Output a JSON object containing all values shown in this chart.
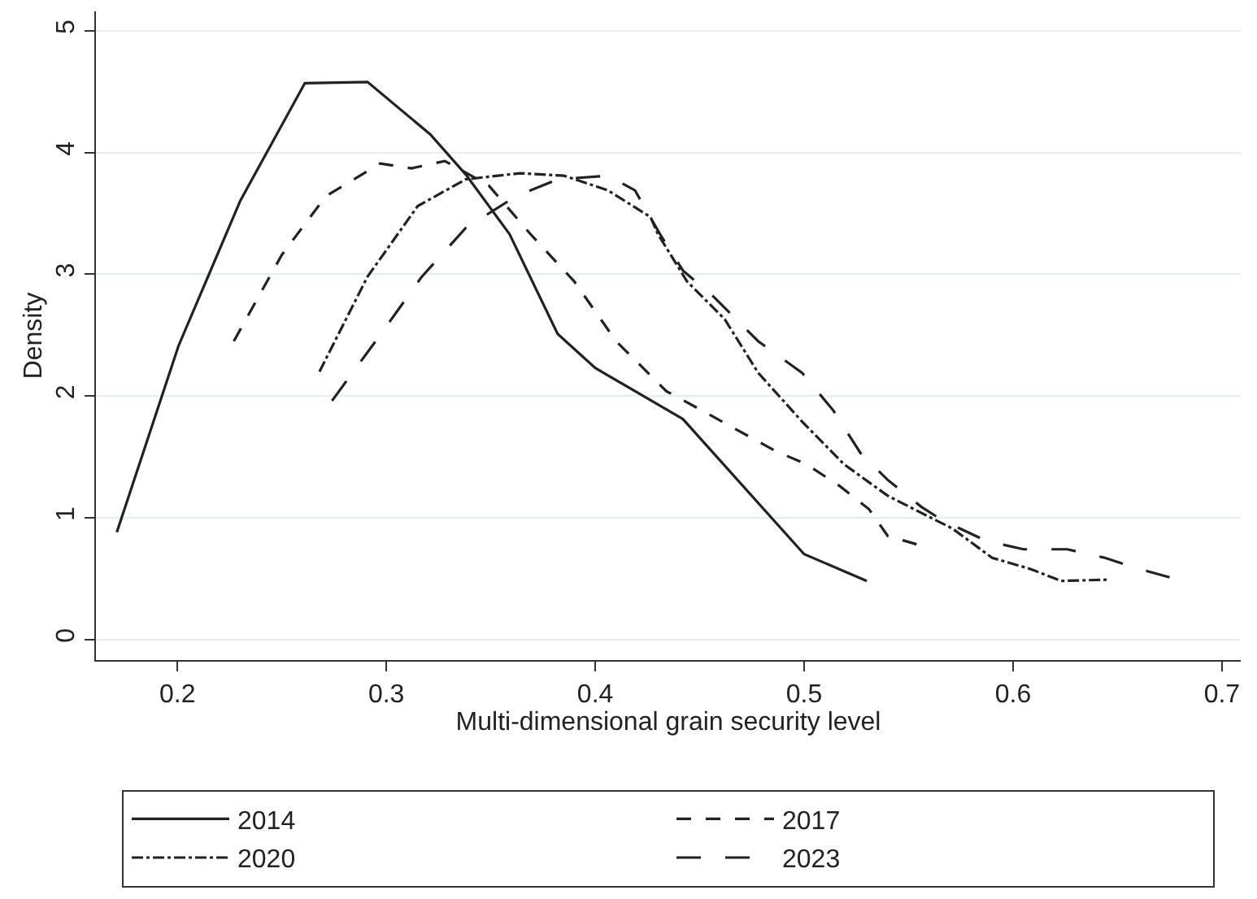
{
  "chart_data": {
    "type": "line",
    "xlabel": "Multi-dimensional grain security level",
    "ylabel": "Density",
    "xlim": [
      0.161,
      0.709
    ],
    "xticks": [
      0.2,
      0.3,
      0.4,
      0.5,
      0.6,
      0.7
    ],
    "ylim": [
      -0.17,
      5.16
    ],
    "yticks": [
      0,
      1,
      2,
      3,
      4,
      5
    ],
    "grid": "y",
    "legend": "bottom",
    "marker": "none",
    "series": [
      {
        "name": "2014",
        "color": "#222222",
        "line_style": "solid",
        "x": [
          0.171,
          0.2005,
          0.23,
          0.261,
          0.291,
          0.321,
          0.338,
          0.359,
          0.382,
          0.4,
          0.442,
          0.5,
          0.53
        ],
        "values": [
          0.88,
          2.41,
          3.6,
          4.57,
          4.58,
          4.15,
          3.82,
          3.33,
          2.51,
          2.23,
          1.81,
          0.7,
          0.48
        ]
      },
      {
        "name": "2017",
        "color": "#222222",
        "line_style": "dashed",
        "x": [
          0.227,
          0.25,
          0.271,
          0.297,
          0.312,
          0.328,
          0.349,
          0.369,
          0.39,
          0.41,
          0.434,
          0.449,
          0.486,
          0.501,
          0.517,
          0.531,
          0.54,
          0.556
        ],
        "values": [
          2.45,
          3.16,
          3.64,
          3.91,
          3.87,
          3.93,
          3.73,
          3.33,
          2.94,
          2.45,
          2.04,
          1.9,
          1.55,
          1.44,
          1.26,
          1.07,
          0.85,
          0.77
        ]
      },
      {
        "name": "2020",
        "color": "#222222",
        "line_style": "dashdot",
        "x": [
          0.268,
          0.291,
          0.315,
          0.338,
          0.364,
          0.385,
          0.406,
          0.4265,
          0.43,
          0.444,
          0.462,
          0.478,
          0.499,
          0.519,
          0.54,
          0.556,
          0.571,
          0.59,
          0.608,
          0.623,
          0.645
        ],
        "values": [
          2.2,
          2.98,
          3.56,
          3.78,
          3.83,
          3.81,
          3.69,
          3.47,
          3.33,
          2.94,
          2.63,
          2.19,
          1.79,
          1.44,
          1.18,
          1.04,
          0.91,
          0.67,
          0.58,
          0.48,
          0.49
        ]
      },
      {
        "name": "2023",
        "color": "#222222",
        "line_style": "longdash",
        "x": [
          0.274,
          0.297,
          0.317,
          0.338,
          0.362,
          0.382,
          0.406,
          0.419,
          0.431,
          0.442,
          0.457,
          0.478,
          0.499,
          0.514,
          0.527,
          0.54,
          0.556,
          0.566,
          0.587,
          0.605,
          0.626,
          0.644,
          0.66,
          0.677
        ],
        "values": [
          1.96,
          2.5,
          2.98,
          3.38,
          3.64,
          3.78,
          3.81,
          3.69,
          3.33,
          3.03,
          2.81,
          2.45,
          2.19,
          1.88,
          1.53,
          1.31,
          1.09,
          0.98,
          0.81,
          0.74,
          0.74,
          0.67,
          0.58,
          0.5
        ]
      }
    ]
  }
}
